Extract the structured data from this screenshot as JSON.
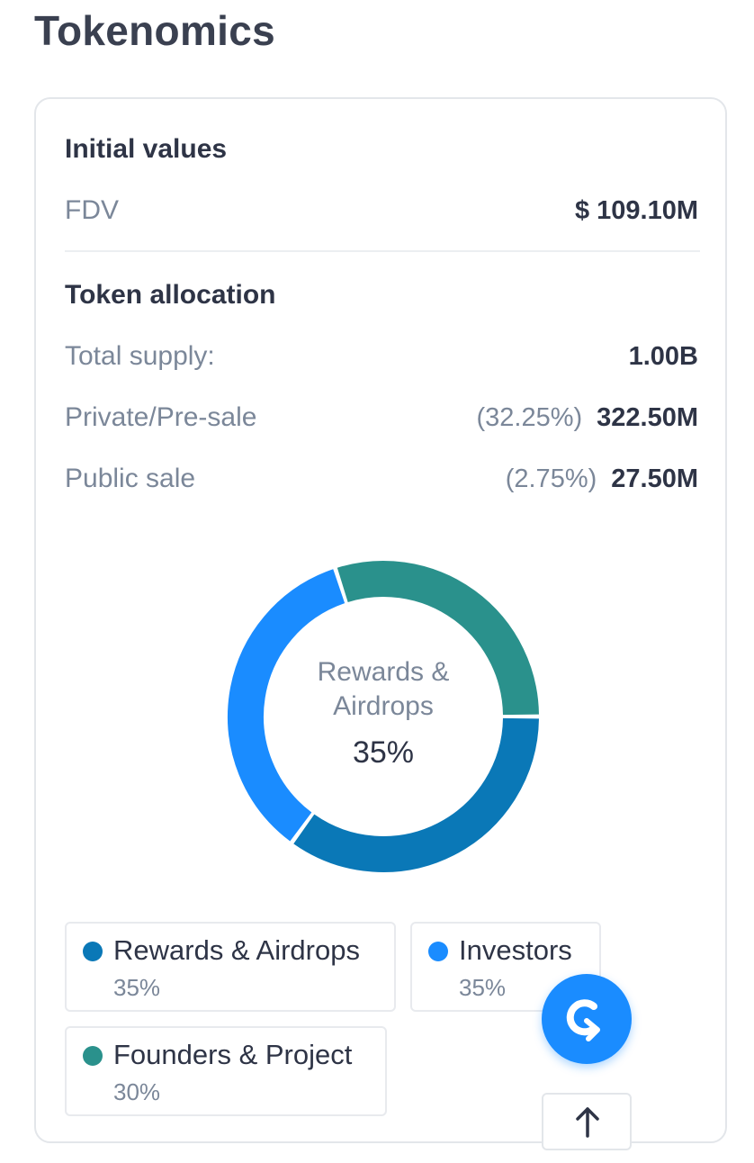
{
  "page": {
    "title": "Tokenomics"
  },
  "initial_values": {
    "title": "Initial values",
    "fdv_label": "FDV",
    "fdv_value": "$ 109.10M"
  },
  "token_allocation": {
    "title": "Token allocation",
    "rows": [
      {
        "label": "Total supply:",
        "pct": "",
        "value": "1.00B"
      },
      {
        "label": "Private/Pre-sale",
        "pct": "(32.25%)",
        "value": "322.50M"
      },
      {
        "label": "Public sale",
        "pct": "(2.75%)",
        "value": "27.50M"
      }
    ]
  },
  "chart": {
    "center_label": "Rewards & Airdrops",
    "center_value": "35%",
    "segments": [
      {
        "name": "Rewards & Airdrops",
        "value": 35,
        "color": "#0a78b7"
      },
      {
        "name": "Investors",
        "value": 35,
        "color": "#1a8cff"
      },
      {
        "name": "Founders & Project",
        "value": 30,
        "color": "#2a918c"
      }
    ]
  },
  "legend": [
    {
      "name": "Rewards & Airdrops",
      "pct": "35%",
      "color": "#0a78b7"
    },
    {
      "name": "Investors",
      "pct": "35%",
      "color": "#1a8cff"
    },
    {
      "name": "Founders & Project",
      "pct": "30%",
      "color": "#2a918c"
    }
  ],
  "icons": {
    "fab": "brand-logo-icon",
    "scroll_top": "arrow-up-icon"
  },
  "colors": {
    "accent": "#1a8cff",
    "text_primary": "#2e3446",
    "text_secondary": "#7b8799"
  }
}
